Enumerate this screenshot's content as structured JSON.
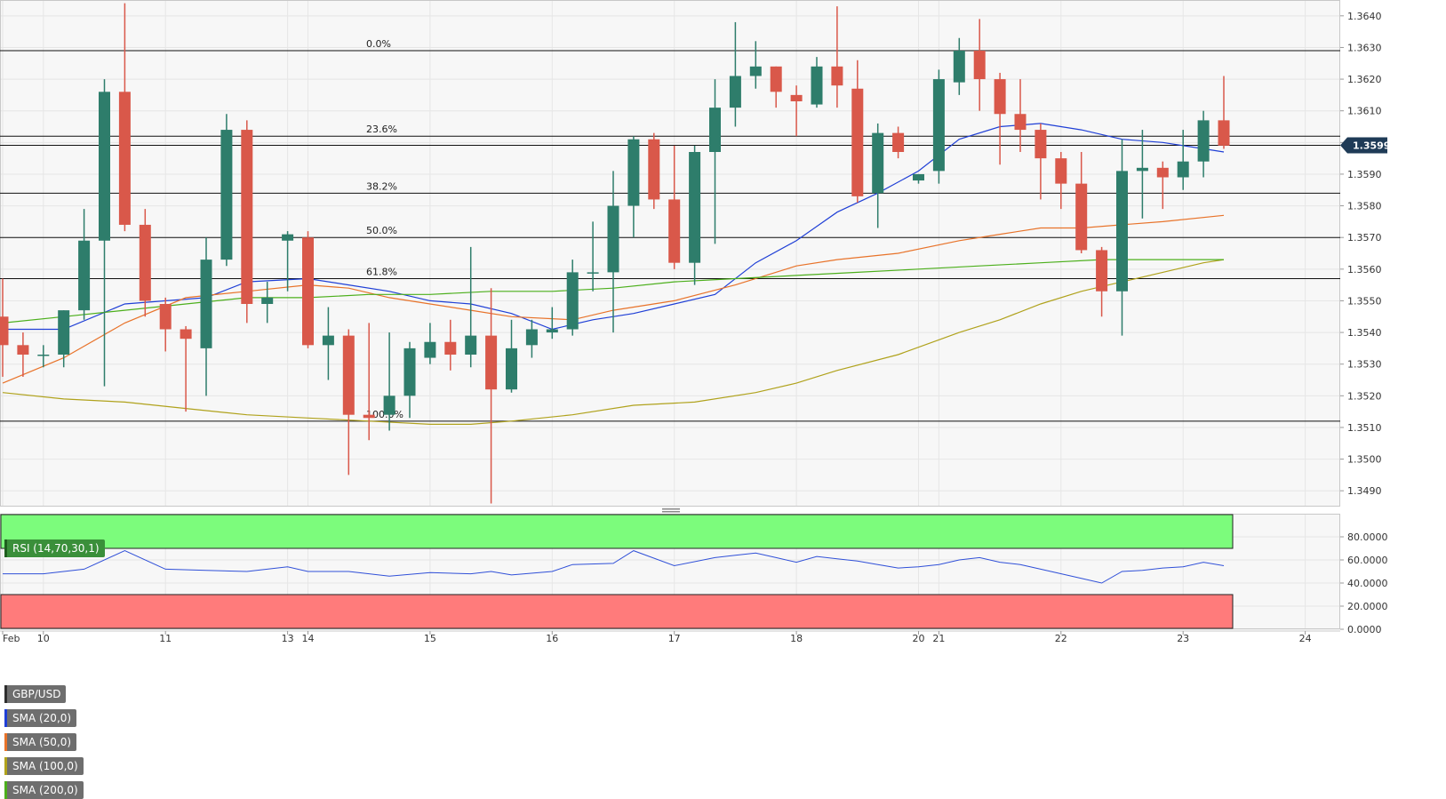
{
  "symbol": "GBP/USD",
  "legend": [
    {
      "label": "SMA (20,0)",
      "color": "#1f3fd6"
    },
    {
      "label": "SMA (50,0)",
      "color": "#e8732a"
    },
    {
      "label": "SMA (100,0)",
      "color": "#b0a21c"
    },
    {
      "label": "SMA (200,0)",
      "color": "#4caf1c"
    }
  ],
  "last_price_label": "1.35991",
  "rsi_label": "RSI (14,70,30,1)",
  "colors": {
    "up": "#2e7d6b",
    "down": "#d9584a",
    "grid": "#e6e6e6",
    "bg": "#f7f7f7",
    "rsi_line": "#3050d8",
    "overbought_zone": "#7cfc7c",
    "oversold_zone": "#ff7b7b"
  },
  "chart_data": [
    {
      "type": "candlestick",
      "title": "GBP/USD",
      "ylim": [
        1.3485,
        1.3645
      ],
      "yticks": [
        "1.3490",
        "1.3500",
        "1.3510",
        "1.3520",
        "1.3530",
        "1.3540",
        "1.3550",
        "1.3560",
        "1.3570",
        "1.3580",
        "1.3590",
        "1.3600",
        "1.3610",
        "1.3620",
        "1.3630",
        "1.3640"
      ],
      "x_ticks": [
        {
          "i": 0,
          "label": "Feb"
        },
        {
          "i": 2,
          "label": "10"
        },
        {
          "i": 8,
          "label": "11"
        },
        {
          "i": 14,
          "label": "13"
        },
        {
          "i": 15,
          "label": "14"
        },
        {
          "i": 21,
          "label": "15"
        },
        {
          "i": 27,
          "label": "16"
        },
        {
          "i": 33,
          "label": "17"
        },
        {
          "i": 39,
          "label": "18"
        },
        {
          "i": 45,
          "label": "20"
        },
        {
          "i": 46,
          "label": "21"
        },
        {
          "i": 52,
          "label": "22"
        },
        {
          "i": 58,
          "label": "23"
        },
        {
          "i": 64,
          "label": "24"
        }
      ],
      "candles": [
        {
          "o": 1.3545,
          "h": 1.3557,
          "l": 1.3526,
          "c": 1.3536
        },
        {
          "o": 1.3536,
          "h": 1.354,
          "l": 1.3526,
          "c": 1.3533
        },
        {
          "o": 1.3533,
          "h": 1.3536,
          "l": 1.3529,
          "c": 1.3533
        },
        {
          "o": 1.3533,
          "h": 1.3547,
          "l": 1.3529,
          "c": 1.3547
        },
        {
          "o": 1.3547,
          "h": 1.3579,
          "l": 1.3544,
          "c": 1.3569
        },
        {
          "o": 1.3569,
          "h": 1.362,
          "l": 1.3523,
          "c": 1.3616
        },
        {
          "o": 1.3616,
          "h": 1.3644,
          "l": 1.3572,
          "c": 1.3574
        },
        {
          "o": 1.3574,
          "h": 1.3579,
          "l": 1.3545,
          "c": 1.355
        },
        {
          "o": 1.3549,
          "h": 1.3551,
          "l": 1.3534,
          "c": 1.3541
        },
        {
          "o": 1.3541,
          "h": 1.3542,
          "l": 1.3515,
          "c": 1.3538
        },
        {
          "o": 1.3535,
          "h": 1.357,
          "l": 1.352,
          "c": 1.3563
        },
        {
          "o": 1.3563,
          "h": 1.3609,
          "l": 1.3561,
          "c": 1.3604
        },
        {
          "o": 1.3604,
          "h": 1.3607,
          "l": 1.3543,
          "c": 1.3549
        },
        {
          "o": 1.3549,
          "h": 1.3556,
          "l": 1.3543,
          "c": 1.3551
        },
        {
          "o": 1.3569,
          "h": 1.3572,
          "l": 1.3553,
          "c": 1.3571
        },
        {
          "o": 1.357,
          "h": 1.3572,
          "l": 1.3535,
          "c": 1.3536
        },
        {
          "o": 1.3536,
          "h": 1.3548,
          "l": 1.3525,
          "c": 1.3539
        },
        {
          "o": 1.3539,
          "h": 1.3541,
          "l": 1.3495,
          "c": 1.3514
        },
        {
          "o": 1.3514,
          "h": 1.3543,
          "l": 1.3506,
          "c": 1.3513
        },
        {
          "o": 1.3514,
          "h": 1.354,
          "l": 1.3509,
          "c": 1.352
        },
        {
          "o": 1.352,
          "h": 1.3537,
          "l": 1.3513,
          "c": 1.3535
        },
        {
          "o": 1.3532,
          "h": 1.3543,
          "l": 1.353,
          "c": 1.3537
        },
        {
          "o": 1.3537,
          "h": 1.3544,
          "l": 1.3528,
          "c": 1.3533
        },
        {
          "o": 1.3533,
          "h": 1.3567,
          "l": 1.3529,
          "c": 1.3539
        },
        {
          "o": 1.3539,
          "h": 1.3554,
          "l": 1.3486,
          "c": 1.3522
        },
        {
          "o": 1.3522,
          "h": 1.3544,
          "l": 1.3521,
          "c": 1.3535
        },
        {
          "o": 1.3536,
          "h": 1.3544,
          "l": 1.3532,
          "c": 1.3541
        },
        {
          "o": 1.354,
          "h": 1.3548,
          "l": 1.3538,
          "c": 1.3541
        },
        {
          "o": 1.3541,
          "h": 1.3563,
          "l": 1.3539,
          "c": 1.3559
        },
        {
          "o": 1.3559,
          "h": 1.3575,
          "l": 1.3553,
          "c": 1.3559
        },
        {
          "o": 1.3559,
          "h": 1.3591,
          "l": 1.354,
          "c": 1.358
        },
        {
          "o": 1.358,
          "h": 1.3602,
          "l": 1.357,
          "c": 1.3601
        },
        {
          "o": 1.3601,
          "h": 1.3603,
          "l": 1.3579,
          "c": 1.3582
        },
        {
          "o": 1.3582,
          "h": 1.3599,
          "l": 1.356,
          "c": 1.3562
        },
        {
          "o": 1.3562,
          "h": 1.3599,
          "l": 1.3555,
          "c": 1.3597
        },
        {
          "o": 1.3597,
          "h": 1.362,
          "l": 1.3568,
          "c": 1.3611
        },
        {
          "o": 1.3611,
          "h": 1.3638,
          "l": 1.3605,
          "c": 1.3621
        },
        {
          "o": 1.3621,
          "h": 1.3632,
          "l": 1.3617,
          "c": 1.3624
        },
        {
          "o": 1.3624,
          "h": 1.3624,
          "l": 1.3611,
          "c": 1.3616
        },
        {
          "o": 1.3615,
          "h": 1.3618,
          "l": 1.3602,
          "c": 1.3613
        },
        {
          "o": 1.3612,
          "h": 1.3627,
          "l": 1.3611,
          "c": 1.3624
        },
        {
          "o": 1.3624,
          "h": 1.3643,
          "l": 1.3611,
          "c": 1.3618
        },
        {
          "o": 1.3617,
          "h": 1.3626,
          "l": 1.3581,
          "c": 1.3583
        },
        {
          "o": 1.3584,
          "h": 1.3606,
          "l": 1.3573,
          "c": 1.3603
        },
        {
          "o": 1.3603,
          "h": 1.3605,
          "l": 1.3595,
          "c": 1.3597
        },
        {
          "o": 1.3588,
          "h": 1.359,
          "l": 1.3587,
          "c": 1.359
        },
        {
          "o": 1.3591,
          "h": 1.3623,
          "l": 1.3587,
          "c": 1.362
        },
        {
          "o": 1.3619,
          "h": 1.3633,
          "l": 1.3615,
          "c": 1.3629
        },
        {
          "o": 1.3629,
          "h": 1.3639,
          "l": 1.361,
          "c": 1.362
        },
        {
          "o": 1.362,
          "h": 1.3622,
          "l": 1.3593,
          "c": 1.3609
        },
        {
          "o": 1.3609,
          "h": 1.362,
          "l": 1.3597,
          "c": 1.3604
        },
        {
          "o": 1.3604,
          "h": 1.3606,
          "l": 1.3582,
          "c": 1.3595
        },
        {
          "o": 1.3595,
          "h": 1.3597,
          "l": 1.3579,
          "c": 1.3587
        },
        {
          "o": 1.3587,
          "h": 1.3597,
          "l": 1.3565,
          "c": 1.3566
        },
        {
          "o": 1.3566,
          "h": 1.3567,
          "l": 1.3545,
          "c": 1.3553
        },
        {
          "o": 1.3553,
          "h": 1.3601,
          "l": 1.3539,
          "c": 1.3591
        },
        {
          "o": 1.3591,
          "h": 1.3604,
          "l": 1.3576,
          "c": 1.3592
        },
        {
          "o": 1.3592,
          "h": 1.3594,
          "l": 1.3579,
          "c": 1.3589
        },
        {
          "o": 1.3589,
          "h": 1.3604,
          "l": 1.3585,
          "c": 1.3594
        },
        {
          "o": 1.3594,
          "h": 1.361,
          "l": 1.3589,
          "c": 1.3607
        },
        {
          "o": 1.3607,
          "h": 1.3621,
          "l": 1.3598,
          "c": 1.3599
        }
      ],
      "sma": [
        {
          "name": "SMA (20,0)",
          "color": "#1f3fd6",
          "points": [
            [
              0,
              1.3541
            ],
            [
              3,
              1.3541
            ],
            [
              6,
              1.3549
            ],
            [
              10,
              1.3551
            ],
            [
              12,
              1.3556
            ],
            [
              15,
              1.3557
            ],
            [
              17,
              1.3555
            ],
            [
              19,
              1.3553
            ],
            [
              21,
              1.355
            ],
            [
              23,
              1.3549
            ],
            [
              25,
              1.3546
            ],
            [
              27,
              1.3541
            ],
            [
              29,
              1.3544
            ],
            [
              31,
              1.3546
            ],
            [
              33,
              1.3549
            ],
            [
              35,
              1.3552
            ],
            [
              37,
              1.3562
            ],
            [
              39,
              1.3569
            ],
            [
              41,
              1.3578
            ],
            [
              43,
              1.3584
            ],
            [
              45,
              1.3591
            ],
            [
              47,
              1.3601
            ],
            [
              49,
              1.3605
            ],
            [
              51,
              1.3606
            ],
            [
              53,
              1.3604
            ],
            [
              55,
              1.3601
            ],
            [
              57,
              1.36
            ],
            [
              59,
              1.3598
            ],
            [
              60,
              1.3597
            ]
          ]
        },
        {
          "name": "SMA (50,0)",
          "color": "#e8732a",
          "points": [
            [
              0,
              1.3524
            ],
            [
              3,
              1.3532
            ],
            [
              6,
              1.3543
            ],
            [
              9,
              1.3551
            ],
            [
              12,
              1.3553
            ],
            [
              15,
              1.3555
            ],
            [
              17,
              1.3554
            ],
            [
              19,
              1.3551
            ],
            [
              21,
              1.3549
            ],
            [
              23,
              1.3547
            ],
            [
              25,
              1.3545
            ],
            [
              28,
              1.3544
            ],
            [
              30,
              1.3547
            ],
            [
              33,
              1.355
            ],
            [
              36,
              1.3555
            ],
            [
              39,
              1.3561
            ],
            [
              41,
              1.3563
            ],
            [
              44,
              1.3565
            ],
            [
              47,
              1.3569
            ],
            [
              49,
              1.3571
            ],
            [
              51,
              1.3573
            ],
            [
              53,
              1.3573
            ],
            [
              55,
              1.3574
            ],
            [
              57,
              1.3575
            ],
            [
              60,
              1.3577
            ]
          ]
        },
        {
          "name": "SMA (100,0)",
          "color": "#b0a21c",
          "points": [
            [
              0,
              1.3521
            ],
            [
              3,
              1.3519
            ],
            [
              6,
              1.3518
            ],
            [
              9,
              1.3516
            ],
            [
              12,
              1.3514
            ],
            [
              15,
              1.3513
            ],
            [
              18,
              1.3512
            ],
            [
              21,
              1.3511
            ],
            [
              23,
              1.3511
            ],
            [
              25,
              1.3512
            ],
            [
              28,
              1.3514
            ],
            [
              31,
              1.3517
            ],
            [
              34,
              1.3518
            ],
            [
              37,
              1.3521
            ],
            [
              39,
              1.3524
            ],
            [
              41,
              1.3528
            ],
            [
              44,
              1.3533
            ],
            [
              47,
              1.354
            ],
            [
              49,
              1.3544
            ],
            [
              51,
              1.3549
            ],
            [
              53,
              1.3553
            ],
            [
              55,
              1.3556
            ],
            [
              57,
              1.3559
            ],
            [
              59,
              1.3562
            ],
            [
              60,
              1.3563
            ]
          ]
        },
        {
          "name": "SMA (200,0)",
          "color": "#4caf1c",
          "points": [
            [
              0,
              1.3543
            ],
            [
              3,
              1.3545
            ],
            [
              6,
              1.3547
            ],
            [
              9,
              1.3549
            ],
            [
              12,
              1.3551
            ],
            [
              15,
              1.3551
            ],
            [
              18,
              1.3552
            ],
            [
              21,
              1.3552
            ],
            [
              24,
              1.3553
            ],
            [
              27,
              1.3553
            ],
            [
              30,
              1.3554
            ],
            [
              33,
              1.3556
            ],
            [
              36,
              1.3557
            ],
            [
              39,
              1.3558
            ],
            [
              42,
              1.3559
            ],
            [
              45,
              1.356
            ],
            [
              48,
              1.3561
            ],
            [
              51,
              1.3562
            ],
            [
              54,
              1.3563
            ],
            [
              57,
              1.3563
            ],
            [
              60,
              1.3563
            ]
          ]
        }
      ],
      "fib_levels": [
        {
          "label": "0.0%",
          "value": 1.3629
        },
        {
          "label": "23.6%",
          "value": 1.3602
        },
        {
          "label": "38.2%",
          "value": 1.3584
        },
        {
          "label": "50.0%",
          "value": 1.357
        },
        {
          "label": "61.8%",
          "value": 1.3557
        },
        {
          "label": "100.0%",
          "value": 1.3512
        }
      ],
      "last_price": 1.35991
    },
    {
      "type": "line",
      "title": "RSI (14,70,30,1)",
      "ylim": [
        0,
        100
      ],
      "yticks": [
        "0.0000",
        "20.0000",
        "40.0000",
        "60.0000",
        "80.0000"
      ],
      "overbought": 70,
      "oversold": 30,
      "x": [
        0,
        2,
        4,
        6,
        8,
        10,
        12,
        14,
        15,
        17,
        19,
        21,
        23,
        24,
        25,
        27,
        28,
        30,
        31,
        33,
        35,
        36,
        37,
        38,
        39,
        40,
        41,
        42,
        43,
        44,
        45,
        46,
        47,
        48,
        49,
        50,
        51,
        53,
        54,
        55,
        56,
        57,
        58,
        59,
        60
      ],
      "y": [
        48,
        48,
        52,
        68,
        52,
        51,
        50,
        54,
        50,
        50,
        46,
        49,
        48,
        50,
        47,
        50,
        56,
        57,
        68,
        55,
        62,
        64,
        66,
        62,
        58,
        63,
        61,
        59,
        56,
        53,
        54,
        56,
        60,
        62,
        58,
        56,
        52,
        44,
        40,
        50,
        51,
        53,
        54,
        58,
        55
      ]
    }
  ]
}
